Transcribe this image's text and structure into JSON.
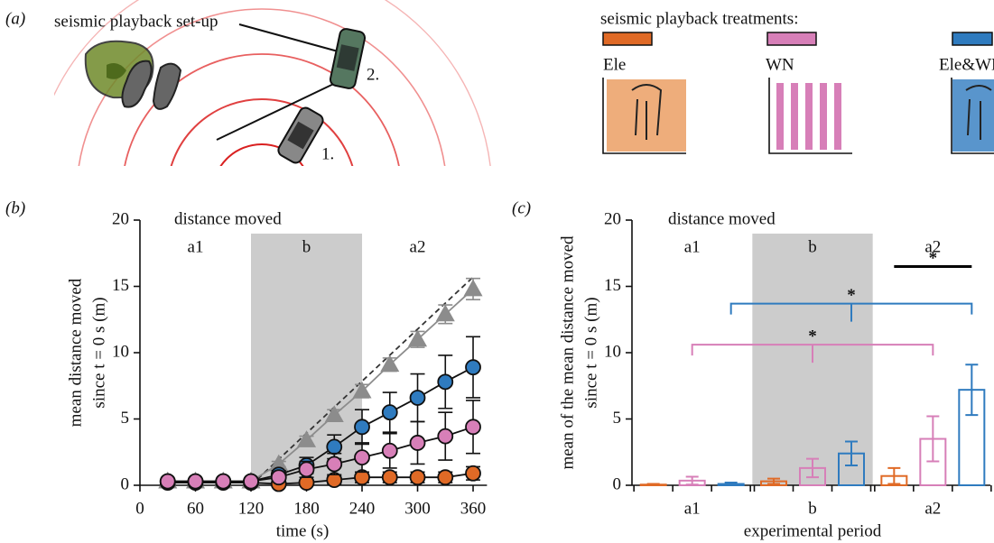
{
  "diagram": {
    "panel_label": "(a)",
    "title": "seismic playback set-up",
    "car_labels": [
      "1.",
      "2."
    ],
    "treatments_title": "seismic playback treatments:"
  },
  "chart_data": [
    {
      "type": "line",
      "panel_label": "(b)",
      "title": "distance moved",
      "xlabel": "time (s)",
      "ylabel": [
        "mean distance moved",
        "since t = 0 s (m)"
      ],
      "xlim": [
        0,
        375
      ],
      "ylim": [
        0,
        20
      ],
      "xticks": [
        0,
        60,
        120,
        180,
        240,
        300,
        360
      ],
      "yticks": [
        0,
        5,
        10,
        15,
        20
      ],
      "periods": [
        {
          "label": "a1",
          "range": [
            0,
            120
          ]
        },
        {
          "label": "b",
          "range": [
            120,
            240
          ],
          "shaded": true
        },
        {
          "label": "a2",
          "range": [
            240,
            360
          ]
        }
      ],
      "x": [
        30,
        60,
        90,
        120,
        150,
        180,
        210,
        240,
        270,
        300,
        330,
        360
      ],
      "reference": {
        "x": [
          120,
          360
        ],
        "values": [
          0,
          15.7
        ],
        "color": "#333333",
        "dashed": true
      },
      "series": [
        {
          "color": "#8c8c8c",
          "marker": "triangle",
          "values": [
            0.3,
            0.3,
            0.3,
            0.3,
            1.6,
            3.4,
            5.3,
            7.1,
            9.1,
            11.0,
            12.9,
            14.8
          ],
          "errors": [
            0.05,
            0.05,
            0.05,
            0.05,
            0.2,
            0.3,
            0.4,
            0.5,
            0.5,
            0.6,
            0.7,
            0.8
          ]
        },
        {
          "color": "#e06a26",
          "marker": "circle",
          "values": [
            0.2,
            0.2,
            0.2,
            0.2,
            0.1,
            0.2,
            0.4,
            0.6,
            0.6,
            0.6,
            0.6,
            0.9
          ],
          "errors": [
            0.05,
            0.05,
            0.05,
            0.05,
            0.1,
            0.2,
            0.3,
            0.4,
            0.4,
            0.4,
            0.4,
            0.5
          ]
        },
        {
          "color": "#2f7bbf",
          "marker": "circle",
          "values": [
            0.3,
            0.3,
            0.3,
            0.3,
            0.8,
            1.5,
            2.9,
            4.4,
            5.5,
            6.6,
            7.8,
            8.9
          ],
          "errors": [
            0.05,
            0.05,
            0.05,
            0.1,
            0.3,
            0.6,
            0.9,
            1.3,
            1.5,
            1.8,
            2.0,
            2.3
          ]
        },
        {
          "color": "#d77fb8",
          "marker": "circle",
          "values": [
            0.3,
            0.3,
            0.3,
            0.3,
            0.6,
            1.2,
            1.6,
            2.1,
            2.6,
            3.2,
            3.7,
            4.4
          ],
          "errors": [
            0.05,
            0.05,
            0.05,
            0.1,
            0.3,
            0.6,
            0.8,
            1.1,
            1.3,
            1.6,
            1.8,
            2.0
          ]
        }
      ]
    },
    {
      "type": "bar",
      "panel_label": "(c)",
      "title": "distance moved",
      "xlabel": "experimental period",
      "ylabel": [
        "mean of the mean distance moved",
        "since t = 0 s (m)"
      ],
      "ylim": [
        0,
        20
      ],
      "yticks": [
        0,
        5,
        10,
        15,
        20
      ],
      "categories": [
        "a1",
        "b",
        "a2"
      ],
      "periods": [
        {
          "label": "a1"
        },
        {
          "label": "b",
          "shaded": true
        },
        {
          "label": "a2"
        }
      ],
      "series": [
        {
          "name": "Ele",
          "color": "#e06a26",
          "values": [
            0.05,
            0.3,
            0.7
          ],
          "errors": [
            0.05,
            0.2,
            0.6
          ]
        },
        {
          "name": "WN",
          "color": "#d77fb8",
          "values": [
            0.35,
            1.3,
            3.5
          ],
          "errors": [
            0.3,
            0.7,
            1.7
          ]
        },
        {
          "name": "Ele&WN",
          "color": "#2f7bbf",
          "values": [
            0.1,
            2.4,
            7.2
          ],
          "errors": [
            0.1,
            0.9,
            1.9
          ]
        }
      ],
      "significance": [
        {
          "label": "*",
          "y": 16.5,
          "color": "#000000",
          "from": {
            "category": "a2",
            "series": "Ele"
          },
          "to": {
            "category": "a2",
            "series": "Ele&WN"
          }
        },
        {
          "label": "*",
          "y": 13.7,
          "color": "#2f7bbf",
          "from": {
            "category": "a1",
            "series": "Ele&WN"
          },
          "mid": {
            "category": "b",
            "series": "Ele&WN"
          },
          "to": {
            "category": "a2",
            "series": "Ele&WN"
          }
        },
        {
          "label": "*",
          "y": 10.6,
          "color": "#d77fb8",
          "from": {
            "category": "a1",
            "series": "WN"
          },
          "mid": {
            "category": "b",
            "series": "WN"
          },
          "to": {
            "category": "a2",
            "series": "WN"
          }
        }
      ]
    }
  ]
}
